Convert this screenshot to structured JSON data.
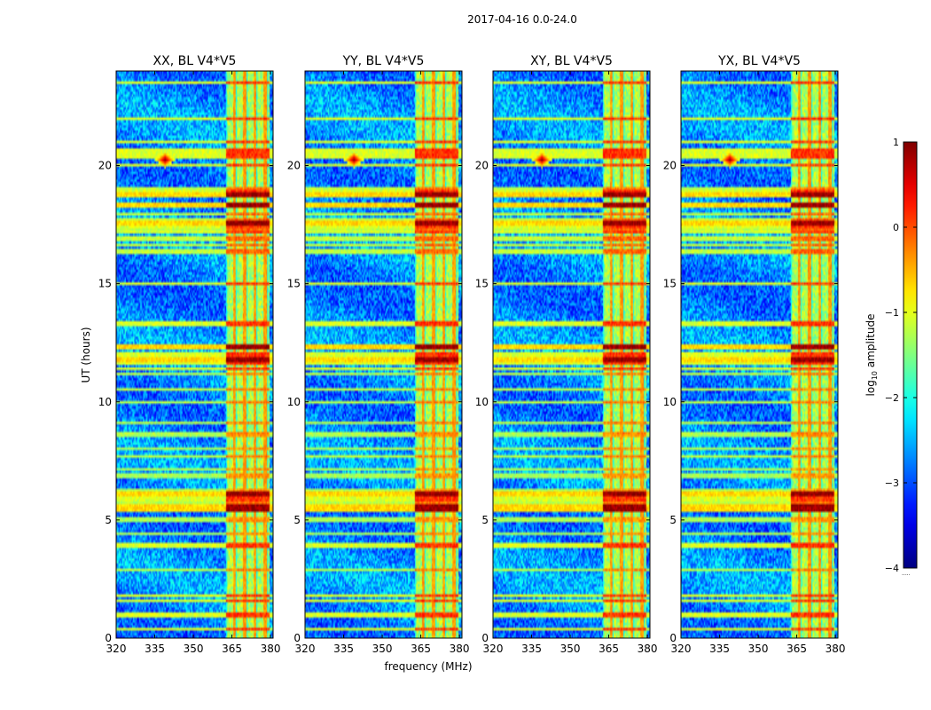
{
  "figure": {
    "title": "2017-04-16 0.0-24.0",
    "xlabel": "frequency (MHz)",
    "ylabel": "UT (hours)",
    "colorbar_label_prefix": "log",
    "colorbar_label_sub": "10",
    "colorbar_label_suffix": " amplitude",
    "colorbar_extra": "....."
  },
  "chart_data": {
    "type": "heatmap",
    "colormap": "jet",
    "xlim": [
      320,
      381
    ],
    "ylim": [
      0,
      24
    ],
    "clim": [
      -4,
      1
    ],
    "xticks": [
      "320",
      "335",
      "350",
      "365",
      "380"
    ],
    "yticks": [
      "0",
      "5",
      "10",
      "15",
      "20"
    ],
    "colorbar_ticks": [
      "1",
      "0",
      "−1",
      "−2",
      "−3",
      "−4"
    ],
    "panels": [
      {
        "title": "XX, BL V4*V5"
      },
      {
        "title": "YY, BL V4*V5"
      },
      {
        "title": "XY, BL V4*V5"
      },
      {
        "title": "YX, BL V4*V5"
      }
    ],
    "features": {
      "rfi_band_mhz": [
        362.5,
        379.5
      ],
      "rfi_channels_mhz": [
        366,
        370,
        374,
        378
      ],
      "strong_rfi_times_h": [
        5.5,
        6.1,
        11.8,
        12.3,
        17.6,
        18.3,
        18.8
      ],
      "broadband_times_h": [
        0.4,
        1.0,
        1.6,
        1.8,
        3.9,
        5.6,
        5.9,
        6.1,
        11.4,
        11.7,
        12.0,
        12.3,
        13.3,
        15.0,
        17.2,
        17.4,
        17.6,
        18.7,
        18.9,
        20.0,
        20.4,
        20.6,
        21.0,
        22.0,
        23.5
      ],
      "point_source": {
        "freq_mhz": 339,
        "time_h": 20.25,
        "value": 1.0
      },
      "background_value": -2.7
    }
  }
}
